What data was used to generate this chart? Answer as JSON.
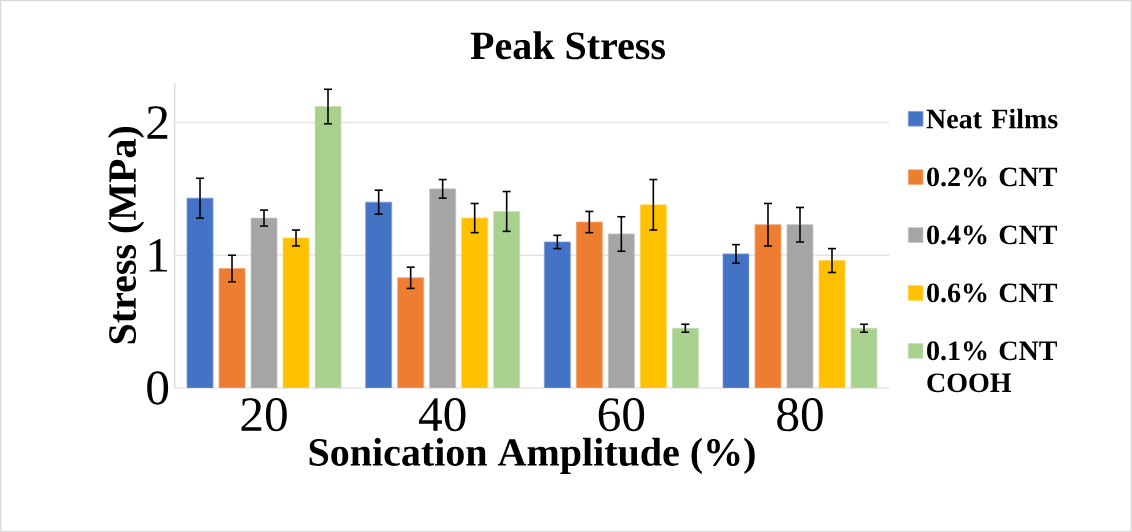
{
  "chart_data": {
    "type": "bar",
    "title": "Peak Stress",
    "xlabel": "Sonication Amplitude (%)",
    "ylabel": "Stress (MPa)",
    "categories": [
      "20",
      "40",
      "60",
      "80"
    ],
    "series": [
      {
        "name": "Neat Films",
        "color": "#4472c4",
        "values": [
          1.43,
          1.4,
          1.1,
          1.01
        ],
        "errors": [
          0.15,
          0.09,
          0.05,
          0.07
        ]
      },
      {
        "name": "0.2% CNT",
        "color": "#ed7d31",
        "values": [
          0.9,
          0.83,
          1.25,
          1.23
        ],
        "errors": [
          0.1,
          0.08,
          0.08,
          0.16
        ]
      },
      {
        "name": "0.4% CNT",
        "color": "#a5a5a5",
        "values": [
          1.28,
          1.5,
          1.16,
          1.23
        ],
        "errors": [
          0.06,
          0.07,
          0.13,
          0.13
        ]
      },
      {
        "name": "0.6% CNT",
        "color": "#ffc000",
        "values": [
          1.13,
          1.28,
          1.38,
          0.96
        ],
        "errors": [
          0.06,
          0.11,
          0.19,
          0.09
        ]
      },
      {
        "name": "0.1% CNT COOH",
        "color": "#a9d18e",
        "values": [
          2.12,
          1.33,
          0.45,
          0.45
        ],
        "errors": [
          0.13,
          0.15,
          0.03,
          0.03
        ]
      }
    ],
    "ylim": [
      0,
      2.3
    ],
    "yticks": [
      0,
      1,
      2
    ],
    "grid": "y",
    "legend": "right"
  }
}
